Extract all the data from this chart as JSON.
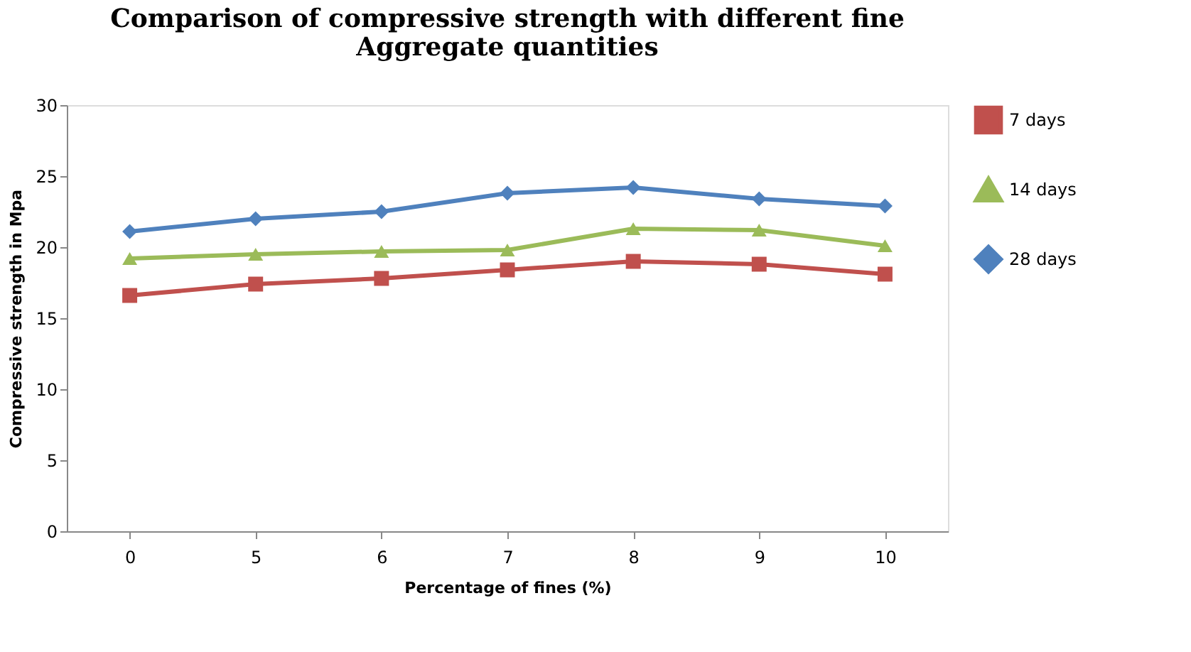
{
  "chart_data": {
    "type": "line",
    "title": [
      "Comparison of compressive strength with different fine",
      "Aggregate quantities"
    ],
    "xlabel": "Percentage  of fines (%)",
    "ylabel": "Compressive  strength in  Mpa",
    "categories": [
      "0",
      "5",
      "6",
      "7",
      "8",
      "9",
      "10"
    ],
    "series": [
      {
        "name": "7 days",
        "color": "#c0504d",
        "marker": "square",
        "values": [
          16.6,
          17.4,
          17.8,
          18.4,
          19.0,
          18.8,
          18.1
        ]
      },
      {
        "name": "14 days",
        "color": "#9bbb59",
        "marker": "triangle",
        "values": [
          19.2,
          19.5,
          19.7,
          19.8,
          21.3,
          21.2,
          20.1
        ]
      },
      {
        "name": "28 days",
        "color": "#4f81bd",
        "marker": "diamond",
        "values": [
          21.1,
          22.0,
          22.5,
          23.8,
          24.2,
          23.4,
          22.9
        ]
      }
    ],
    "ylim": [
      0,
      30
    ],
    "yticks": [
      0,
      5,
      10,
      15,
      20,
      25,
      30
    ],
    "grid": false,
    "legend": "right"
  }
}
